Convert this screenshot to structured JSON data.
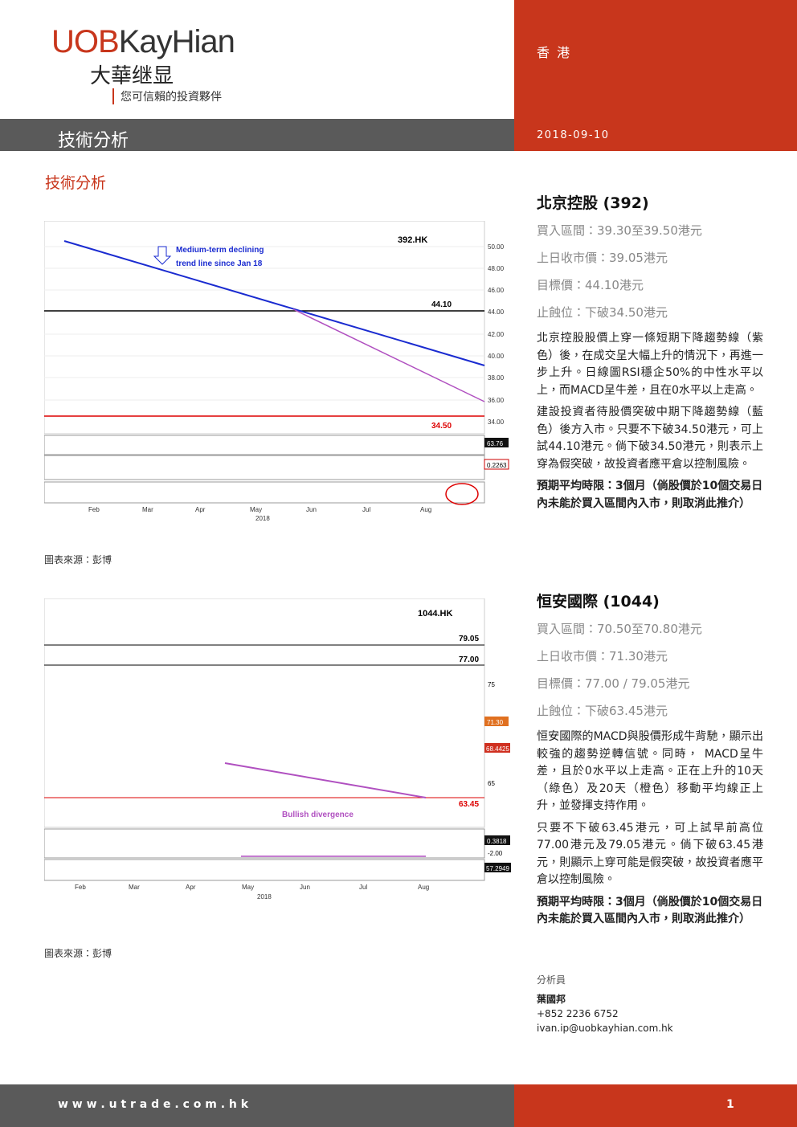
{
  "header": {
    "brand": "UOBKayHian",
    "brand_cn": "大華继显",
    "tagline": "您可信賴的投資夥伴",
    "region": "香 港",
    "section": "技術分析",
    "date": "2018-09-10"
  },
  "page_title": "技術分析",
  "figures": [
    {
      "ticker": "392.HK",
      "annotation": [
        "Medium-term declining",
        "trend line since Jan 18"
      ],
      "levels": [
        "44.10",
        "34.50"
      ],
      "yticks": [
        "50.00",
        "48.00",
        "46.00",
        "44.00",
        "42.00",
        "40.00",
        "38.00",
        "36.00",
        "34.00"
      ],
      "tags": [
        "63.76",
        "0.2263"
      ],
      "months": [
        "Feb",
        "Mar",
        "Apr",
        "May",
        "Jun",
        "Jul",
        "Aug"
      ],
      "year": "2018",
      "source": "圖表來源：彭博"
    },
    {
      "ticker": "1044.HK",
      "annotation": [
        "Bullish divergence"
      ],
      "levels": [
        "79.05",
        "77.00",
        "63.45"
      ],
      "yticks": [
        "75",
        "65"
      ],
      "tags": [
        "71.30",
        "68.4425",
        "0.3818",
        "-2.00",
        "57.2949"
      ],
      "months": [
        "Feb",
        "Mar",
        "Apr",
        "May",
        "Jun",
        "Jul",
        "Aug"
      ],
      "year": "2018",
      "source": "圖表來源：彭博"
    }
  ],
  "stocks": [
    {
      "title": "北京控股 (392)",
      "fields": [
        "買入區間：39.30至39.50港元",
        "上日收市價：39.05港元",
        "目標價：44.10港元",
        "止蝕位：下破34.50港元"
      ],
      "paragraphs": [
        "北京控股股價上穿一條短期下降趨勢線（紫色）後，在成交呈大幅上升的情況下，再進一步上升。日線圖RSI穩企50%的中性水平以上，而MACD呈牛差，且在0水平以上走高。",
        "建設投資者待股價突破中期下降趨勢線（藍色）後方入市。只要不下破34.50港元，可上試44.10港元。倘下破34.50港元，則表示上穿為假突破，故投資者應平倉以控制風險。"
      ],
      "note": "預期平均時限：3個月（倘股價於10個交易日內未能於買入區間內入市，則取消此推介）"
    },
    {
      "title": "恒安國際 (1044)",
      "fields": [
        "買入區間：70.50至70.80港元",
        "上日收市價：71.30港元",
        "目標價：77.00 / 79.05港元",
        "止蝕位：下破63.45港元"
      ],
      "paragraphs": [
        "恒安國際的MACD與股價形成牛背馳，顯示出較強的趨勢逆轉信號。同時， MACD呈牛差，且於0水平以上走高。正在上升的10天（綠色）及20天（橙色）移動平均線正上升，並發揮支持作用。",
        "只要不下破63.45港元，可上試早前高位77.00港元及79.05港元。倘下破63.45港元，則顯示上穿可能是假突破，故投資者應平倉以控制風險。"
      ],
      "note": "預期平均時限：3個月（倘股價於10個交易日內未能於買入區間內入市，則取消此推介）"
    }
  ],
  "analyst": {
    "label": "分析員",
    "name": "葉國邦",
    "phone": "+852 2236 6752",
    "email": "ivan.ip@uobkayhian.com.hk"
  },
  "footer": {
    "url": "w w w . u t r a d e . c o m . h k",
    "page": "1"
  }
}
